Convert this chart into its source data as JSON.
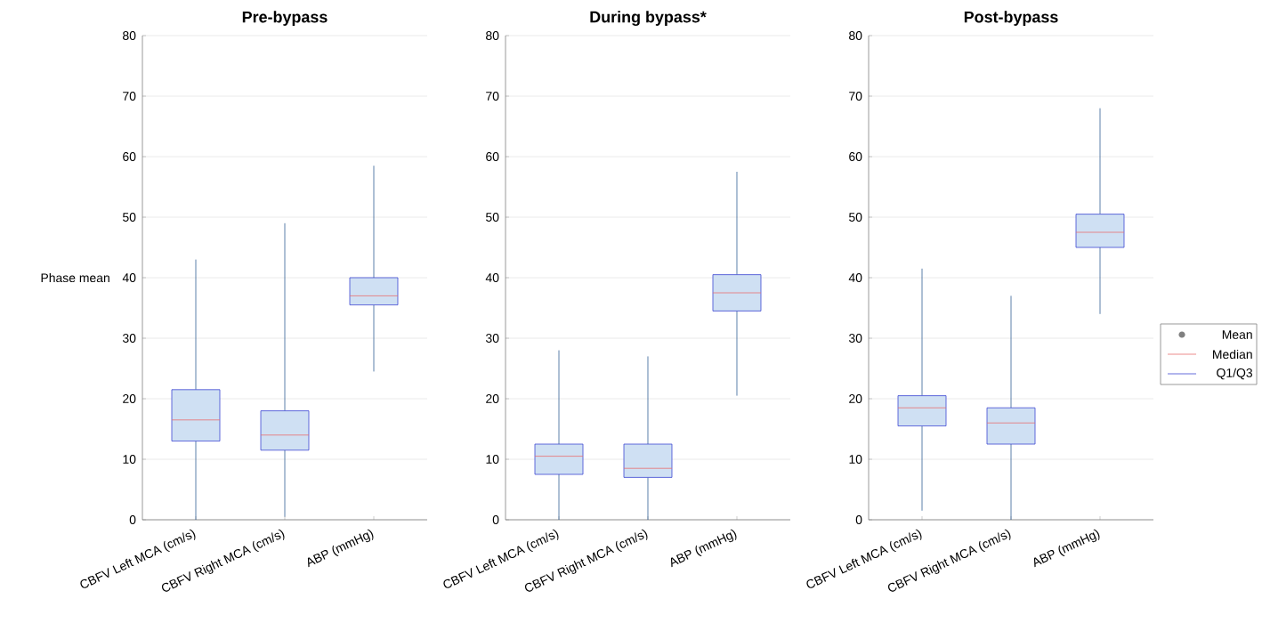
{
  "chart_data": [
    {
      "type": "box",
      "title": "Pre-bypass",
      "ylabel": "Phase mean",
      "categories": [
        "CBFV Left MCA (cm/s)",
        "CBFV Right MCA (cm/s)",
        "ABP (mmHg)"
      ],
      "boxes": [
        {
          "low": 0,
          "q1": 13,
          "median": 16.5,
          "q3": 21.5,
          "high": 43
        },
        {
          "low": 0.5,
          "q1": 11.5,
          "median": 14,
          "q3": 18,
          "high": 49
        },
        {
          "low": 24.5,
          "q1": 35.5,
          "median": 37,
          "q3": 40,
          "high": 58.5
        }
      ],
      "color": "#cfe0f3",
      "ylim": [
        0,
        80
      ],
      "yticks": [
        0,
        10,
        20,
        30,
        40,
        50,
        60,
        70,
        80
      ],
      "grid": "y"
    },
    {
      "type": "box",
      "title": "During bypass*",
      "categories": [
        "CBFV Left MCA (cm/s)",
        "CBFV Right MCA (cm/s)",
        "ABP (mmHg)"
      ],
      "boxes": [
        {
          "low": 0,
          "q1": 7.5,
          "median": 10.5,
          "q3": 12.5,
          "high": 28
        },
        {
          "low": 0,
          "q1": 7,
          "median": 8.5,
          "q3": 12.5,
          "high": 27
        },
        {
          "low": 20.5,
          "q1": 34.5,
          "median": 37.5,
          "q3": 40.5,
          "high": 57.5
        }
      ],
      "color": "#cfe0f3",
      "ylim": [
        0,
        80
      ],
      "yticks": [
        0,
        10,
        20,
        30,
        40,
        50,
        60,
        70,
        80
      ],
      "grid": "y"
    },
    {
      "type": "box",
      "title": "Post-bypass",
      "categories": [
        "CBFV Left MCA (cm/s)",
        "CBFV Right MCA (cm/s)",
        "ABP (mmHg)"
      ],
      "boxes": [
        {
          "low": 1.5,
          "q1": 15.5,
          "median": 18.5,
          "q3": 20.5,
          "high": 41.5
        },
        {
          "low": 0,
          "q1": 12.5,
          "median": 16,
          "q3": 18.5,
          "high": 37
        },
        {
          "low": 34,
          "q1": 45,
          "median": 47.5,
          "q3": 50.5,
          "high": 68
        }
      ],
      "color": "#cfe0f3",
      "ylim": [
        0,
        80
      ],
      "yticks": [
        0,
        10,
        20,
        30,
        40,
        50,
        60,
        70,
        80
      ],
      "grid": "y",
      "annotations": [
        "Mean",
        "Median",
        "Q1/Q3"
      ]
    }
  ]
}
